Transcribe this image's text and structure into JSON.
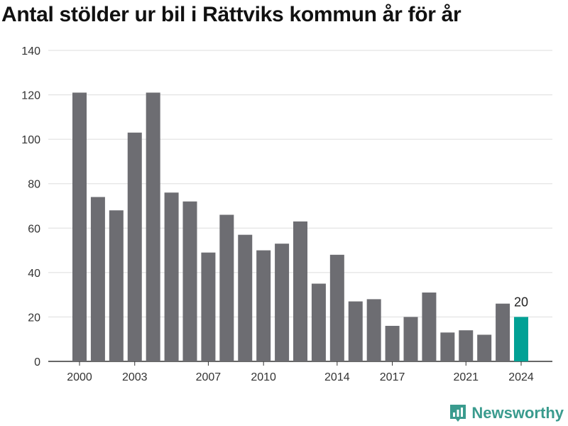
{
  "chart_data": {
    "type": "bar",
    "title": "Antal stölder ur bil i Rättviks kommun år för år",
    "categories": [
      "2000",
      "2001",
      "2002",
      "2003",
      "2004",
      "2005",
      "2006",
      "2007",
      "2008",
      "2009",
      "2010",
      "2011",
      "2012",
      "2013",
      "2014",
      "2015",
      "2016",
      "2017",
      "2018",
      "2019",
      "2020",
      "2021",
      "2022",
      "2023",
      "2024"
    ],
    "values": [
      121,
      74,
      68,
      103,
      121,
      76,
      72,
      49,
      66,
      57,
      50,
      53,
      63,
      35,
      48,
      27,
      28,
      16,
      20,
      31,
      13,
      14,
      12,
      26,
      20
    ],
    "x_tick_labels": [
      "2000",
      "2003",
      "2007",
      "2010",
      "2014",
      "2017",
      "2021",
      "2024"
    ],
    "y_ticks": [
      0,
      20,
      40,
      60,
      80,
      100,
      120,
      140
    ],
    "ylim": [
      0,
      140
    ],
    "xlabel": "",
    "ylabel": "",
    "grid": true,
    "highlight": {
      "category": "2024",
      "label": "20"
    },
    "colors": {
      "bar": "#6d6d72",
      "highlight": "#00a195",
      "grid": "#dddddd",
      "axis": "#333333"
    }
  },
  "brand": {
    "name": "Newsworthy",
    "icon": "newsworthy-logo-icon",
    "color": "#3a9b8e"
  }
}
